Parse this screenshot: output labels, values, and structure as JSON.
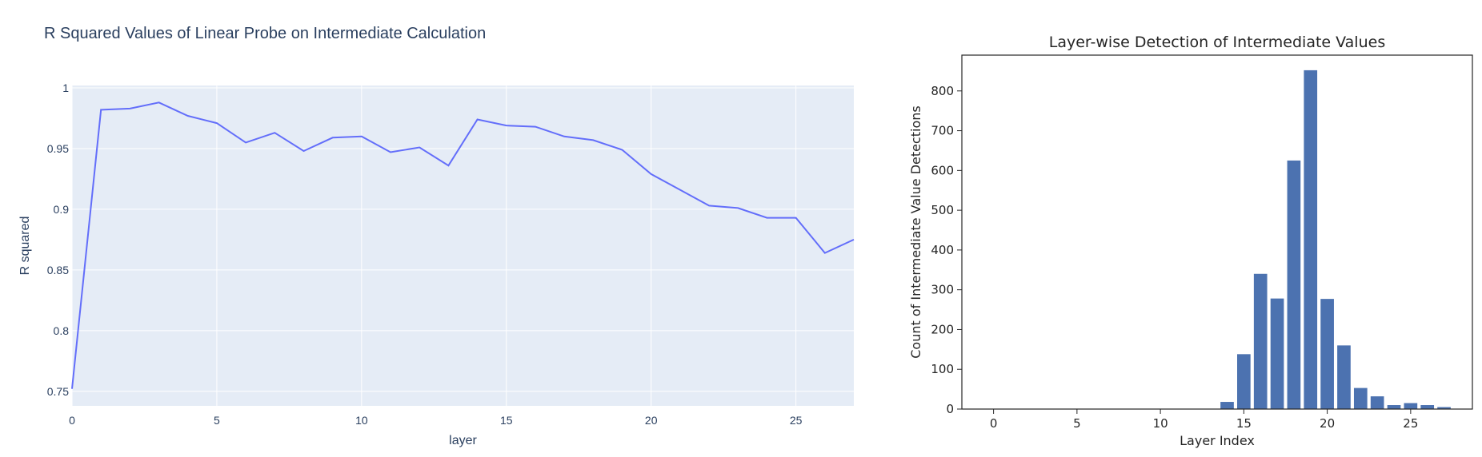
{
  "chart_data": [
    {
      "type": "line",
      "title": "R Squared Values of Linear Probe on Intermediate Calculation",
      "xlabel": "layer",
      "ylabel": "R squared",
      "xlim": [
        0,
        27
      ],
      "ylim": [
        0.738,
        1.002
      ],
      "xticks": [
        0,
        5,
        10,
        15,
        20,
        25
      ],
      "yticks": [
        0.75,
        0.8,
        0.85,
        0.9,
        0.95,
        1
      ],
      "ytick_labels": [
        "0.75",
        "0.8",
        "0.85",
        "0.9",
        "0.95",
        "1"
      ],
      "grid": true,
      "colors": {
        "line": "#636efa",
        "plot_bg": "#e5ecf6",
        "grid": "#ffffff",
        "text": "#2a3f5f"
      },
      "x": [
        0,
        1,
        2,
        3,
        4,
        5,
        6,
        7,
        8,
        9,
        10,
        11,
        12,
        13,
        14,
        15,
        16,
        17,
        18,
        19,
        20,
        21,
        22,
        23,
        24,
        25,
        26,
        27
      ],
      "y": [
        0.752,
        0.982,
        0.983,
        0.988,
        0.977,
        0.971,
        0.955,
        0.963,
        0.948,
        0.959,
        0.96,
        0.947,
        0.951,
        0.936,
        0.974,
        0.969,
        0.968,
        0.96,
        0.957,
        0.949,
        0.929,
        0.916,
        0.903,
        0.901,
        0.893,
        0.893,
        0.864,
        0.875
      ]
    },
    {
      "type": "bar",
      "title": "Layer-wise Detection of Intermediate Values",
      "xlabel": "Layer Index",
      "ylabel": "Count of Intermediate Value Detections",
      "xlim": [
        -1.9,
        28.7
      ],
      "ylim": [
        0,
        890
      ],
      "xticks": [
        0,
        5,
        10,
        15,
        20,
        25
      ],
      "yticks": [
        0,
        100,
        200,
        300,
        400,
        500,
        600,
        700,
        800
      ],
      "grid": false,
      "colors": {
        "bar": "#4c72b0",
        "axis": "#262626"
      },
      "x": [
        14,
        15,
        16,
        17,
        18,
        19,
        20,
        21,
        22,
        23,
        24,
        25,
        26,
        27
      ],
      "values": [
        18,
        138,
        340,
        278,
        625,
        852,
        277,
        160,
        53,
        32,
        10,
        15,
        10,
        5
      ]
    }
  ]
}
